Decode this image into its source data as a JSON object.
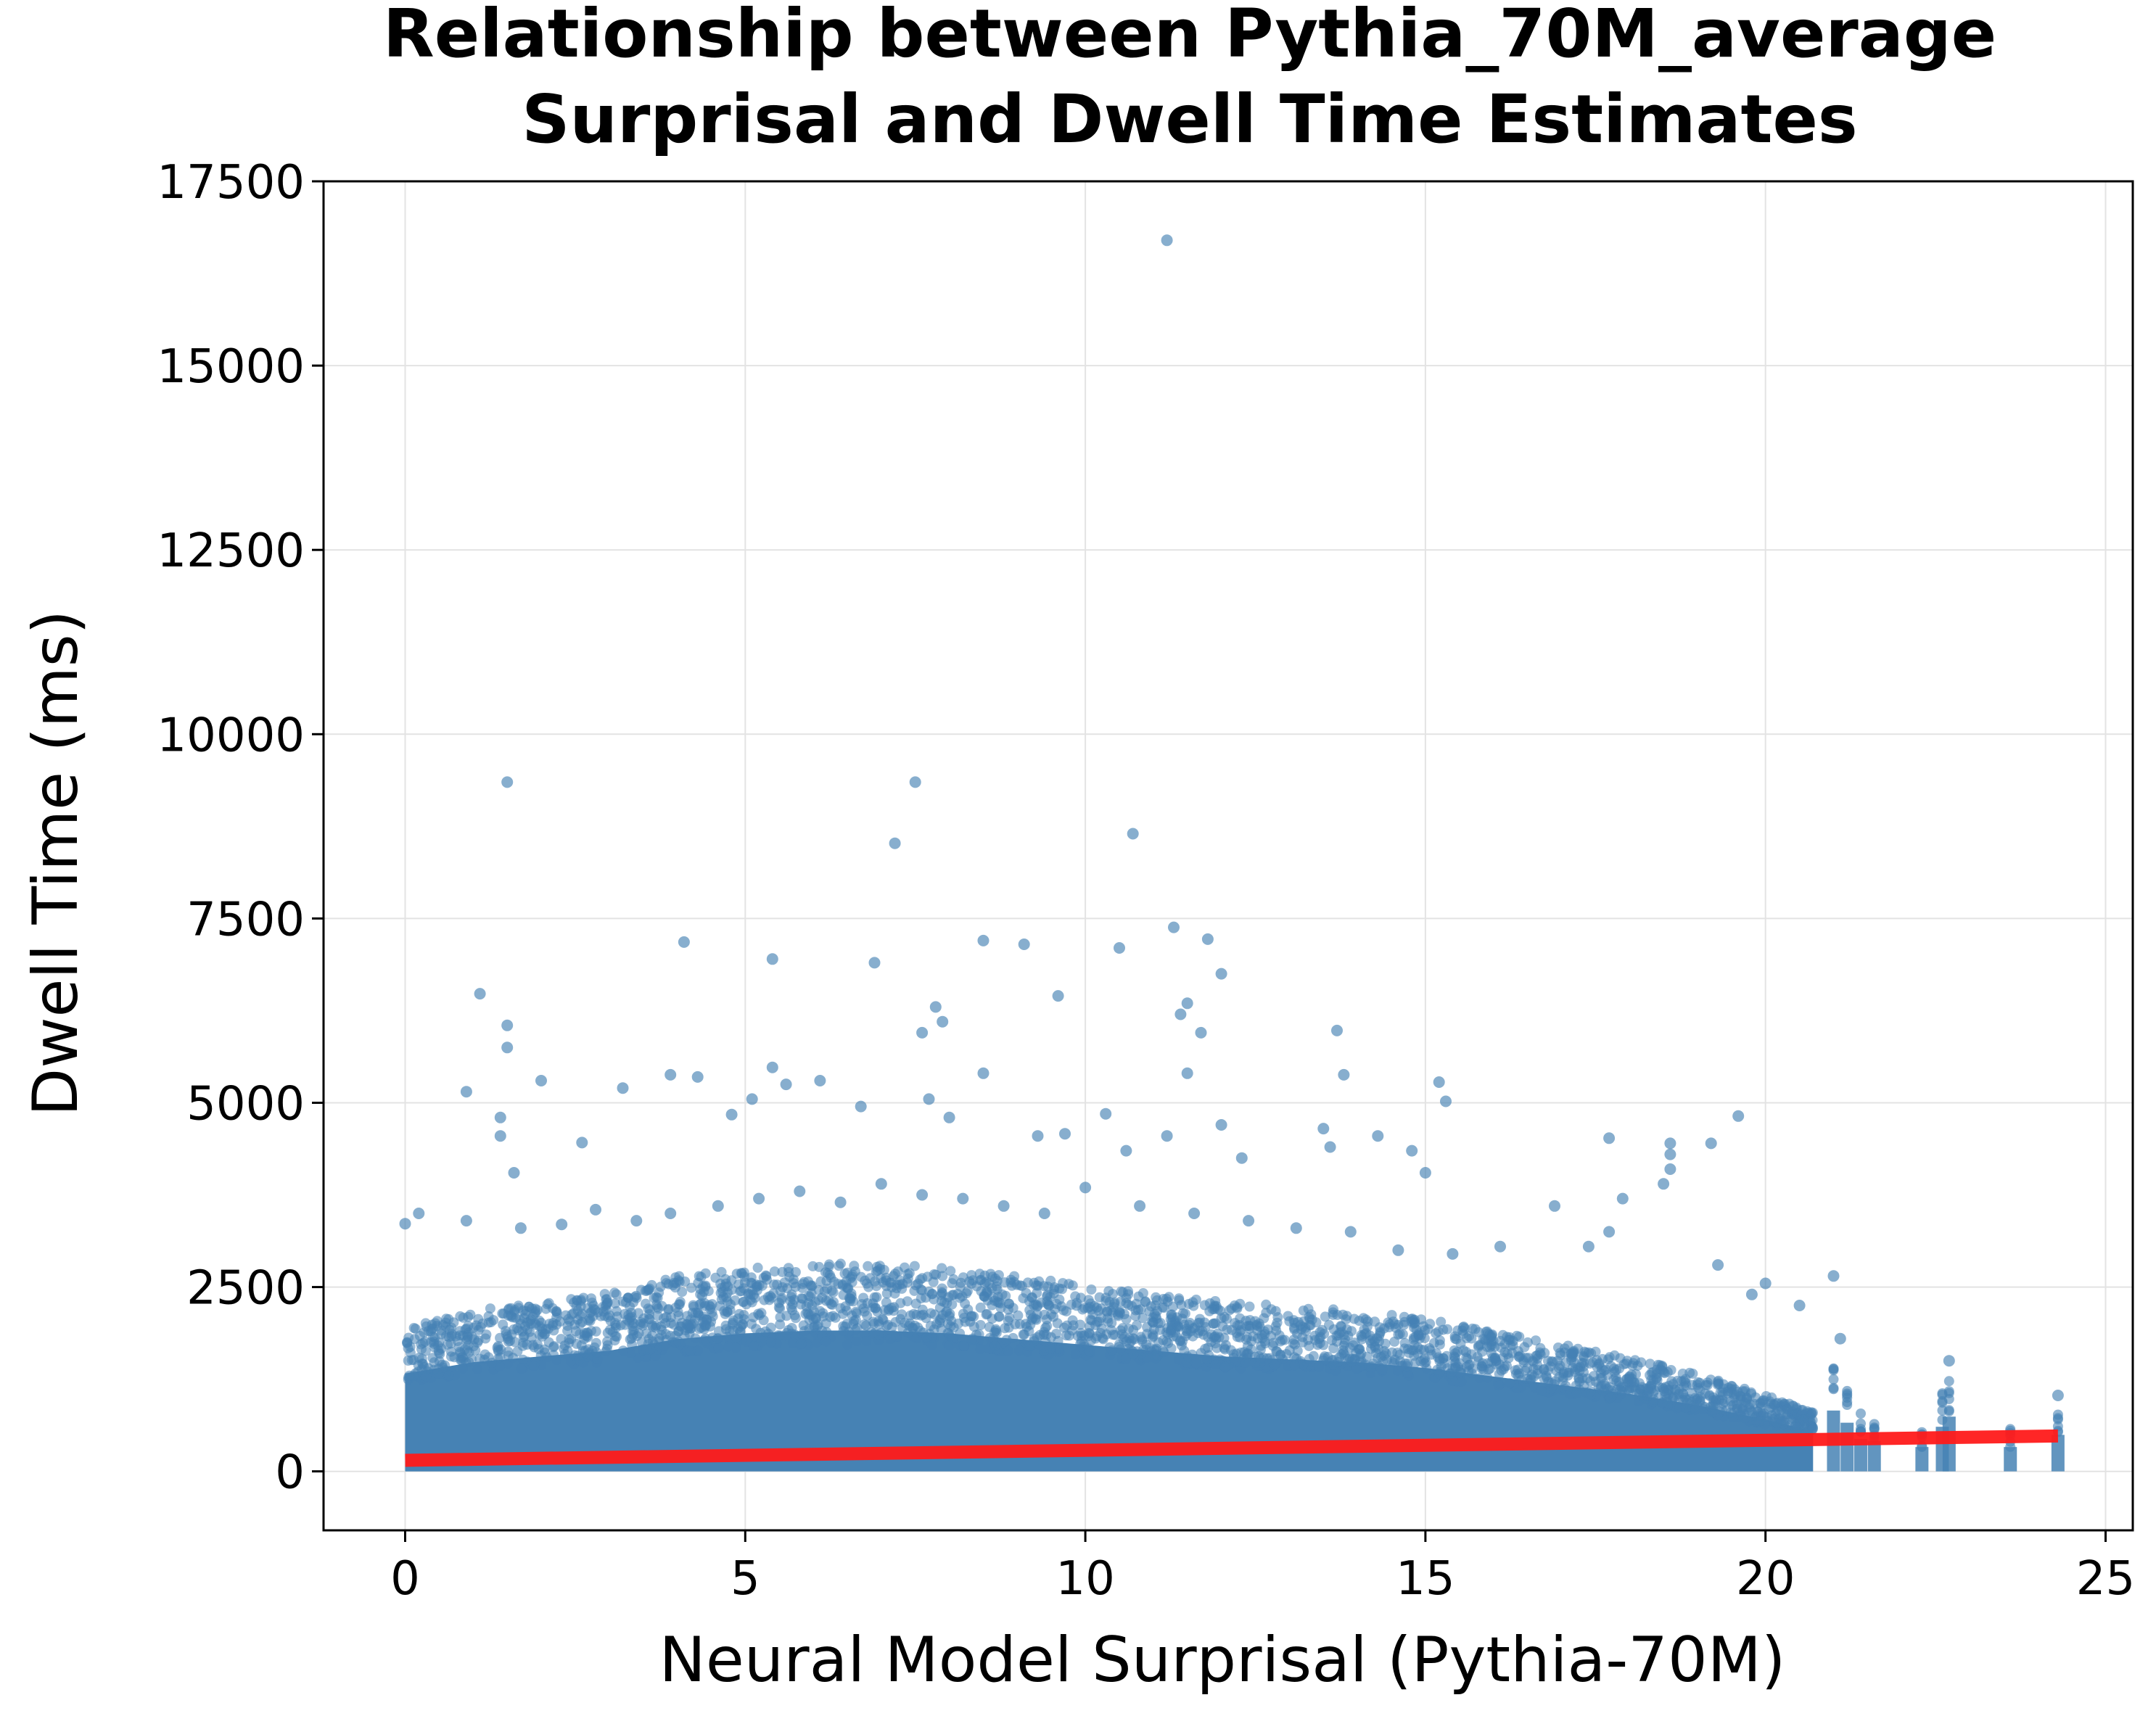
{
  "chart_data": {
    "type": "scatter",
    "title_lines": [
      "Relationship between Pythia_70M_average",
      "Surprisal and Dwell Time Estimates"
    ],
    "xlabel": "Neural Model Surprisal (Pythia-70M)",
    "ylabel": "Dwell Time (ms)",
    "xlim": [
      -1.2,
      25.4
    ],
    "ylim": [
      -800,
      17500
    ],
    "xticks": [
      0,
      5,
      10,
      15,
      20,
      25
    ],
    "yticks": [
      0,
      2500,
      5000,
      7500,
      10000,
      12500,
      15000,
      17500
    ],
    "xtick_labels": [
      "0",
      "5",
      "10",
      "15",
      "20",
      "25"
    ],
    "ytick_labels": [
      "0",
      "2500",
      "5000",
      "7500",
      "10000",
      "12500",
      "15000",
      "17500"
    ],
    "grid": true,
    "point_color": "#4682B4",
    "fit_line_color": "#FF1A1A",
    "fit_line": {
      "x": [
        0,
        24.3
      ],
      "y": [
        150,
        480
      ]
    },
    "density_band": [
      [
        0,
        1700
      ],
      [
        1,
        1900
      ],
      [
        2,
        2000
      ],
      [
        3,
        2100
      ],
      [
        4,
        2300
      ],
      [
        5,
        2400
      ],
      [
        6,
        2450
      ],
      [
        7,
        2450
      ],
      [
        8,
        2400
      ],
      [
        9,
        2300
      ],
      [
        10,
        2200
      ],
      [
        11,
        2100
      ],
      [
        12,
        2000
      ],
      [
        13,
        1950
      ],
      [
        14,
        1900
      ],
      [
        15,
        1800
      ],
      [
        16,
        1650
      ],
      [
        17,
        1500
      ],
      [
        18,
        1350
      ],
      [
        19,
        1150
      ],
      [
        20,
        900
      ],
      [
        20.7,
        700
      ]
    ],
    "outliers": [
      [
        11.2,
        16700
      ],
      [
        1.5,
        9350
      ],
      [
        7.5,
        9350
      ],
      [
        10.7,
        8650
      ],
      [
        7.2,
        8520
      ],
      [
        4.1,
        7180
      ],
      [
        5.4,
        6950
      ],
      [
        6.9,
        6900
      ],
      [
        8.5,
        7200
      ],
      [
        9.1,
        7150
      ],
      [
        10.5,
        7100
      ],
      [
        11.3,
        7380
      ],
      [
        11.8,
        7220
      ],
      [
        12.0,
        6750
      ],
      [
        9.6,
        6450
      ],
      [
        11.5,
        6350
      ],
      [
        11.4,
        6200
      ],
      [
        7.8,
        6300
      ],
      [
        7.9,
        6100
      ],
      [
        7.6,
        5950
      ],
      [
        11.7,
        5950
      ],
      [
        13.7,
        5980
      ],
      [
        11.5,
        5400
      ],
      [
        13.8,
        5380
      ],
      [
        1.1,
        6480
      ],
      [
        1.5,
        6050
      ],
      [
        1.5,
        5750
      ],
      [
        0.9,
        5150
      ],
      [
        2.0,
        5300
      ],
      [
        3.2,
        5200
      ],
      [
        3.9,
        5380
      ],
      [
        4.3,
        5350
      ],
      [
        5.1,
        5050
      ],
      [
        5.4,
        5480
      ],
      [
        5.6,
        5250
      ],
      [
        6.1,
        5300
      ],
      [
        6.7,
        4950
      ],
      [
        7.7,
        5050
      ],
      [
        8.0,
        4800
      ],
      [
        8.5,
        5400
      ],
      [
        9.3,
        4550
      ],
      [
        9.7,
        4580
      ],
      [
        10.3,
        4850
      ],
      [
        10.6,
        4350
      ],
      [
        11.2,
        4550
      ],
      [
        12.0,
        4700
      ],
      [
        12.3,
        4250
      ],
      [
        13.5,
        4650
      ],
      [
        13.6,
        4400
      ],
      [
        14.3,
        4550
      ],
      [
        14.8,
        4350
      ],
      [
        15.2,
        5280
      ],
      [
        15.3,
        5020
      ],
      [
        15.0,
        4050
      ],
      [
        17.7,
        4520
      ],
      [
        18.6,
        4450
      ],
      [
        18.6,
        4300
      ],
      [
        19.2,
        4450
      ],
      [
        19.6,
        4820
      ],
      [
        2.6,
        4460
      ],
      [
        1.6,
        4050
      ],
      [
        1.4,
        4800
      ],
      [
        1.4,
        4550
      ],
      [
        4.8,
        4840
      ],
      [
        0.0,
        3360
      ],
      [
        0.2,
        3500
      ],
      [
        0.9,
        3400
      ],
      [
        1.7,
        3300
      ],
      [
        2.3,
        3350
      ],
      [
        2.8,
        3550
      ],
      [
        3.4,
        3400
      ],
      [
        3.9,
        3500
      ],
      [
        4.6,
        3600
      ],
      [
        5.2,
        3700
      ],
      [
        5.8,
        3800
      ],
      [
        6.4,
        3650
      ],
      [
        7.0,
        3900
      ],
      [
        7.6,
        3750
      ],
      [
        8.2,
        3700
      ],
      [
        8.8,
        3600
      ],
      [
        9.4,
        3500
      ],
      [
        10.0,
        3850
      ],
      [
        10.8,
        3600
      ],
      [
        11.6,
        3500
      ],
      [
        12.4,
        3400
      ],
      [
        13.1,
        3300
      ],
      [
        13.9,
        3250
      ],
      [
        14.6,
        3000
      ],
      [
        15.4,
        2950
      ],
      [
        16.1,
        3050
      ],
      [
        16.9,
        3600
      ],
      [
        17.4,
        3050
      ],
      [
        17.7,
        3250
      ],
      [
        17.9,
        3700
      ],
      [
        18.5,
        3900
      ],
      [
        18.6,
        4100
      ],
      [
        19.3,
        2800
      ],
      [
        19.8,
        2400
      ],
      [
        20.0,
        2550
      ],
      [
        20.5,
        2250
      ],
      [
        21.0,
        2650
      ],
      [
        21.1,
        1800
      ],
      [
        22.7,
        1500
      ],
      [
        24.3,
        1030
      ]
    ],
    "stripe_columns": [
      [
        21.0,
        1500
      ],
      [
        21.2,
        1200
      ],
      [
        21.4,
        800
      ],
      [
        21.6,
        750
      ],
      [
        22.3,
        600
      ],
      [
        22.6,
        1100
      ],
      [
        22.7,
        1350
      ],
      [
        23.6,
        600
      ],
      [
        24.3,
        900
      ]
    ]
  }
}
